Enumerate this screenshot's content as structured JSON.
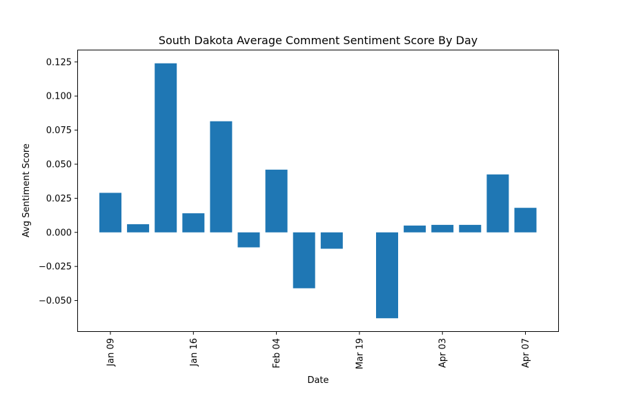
{
  "chart_data": {
    "type": "bar",
    "title": "South Dakota Average Comment Sentiment Score By Day",
    "xlabel": "Date",
    "ylabel": "Avg Sentiment Score",
    "ylim": [
      -0.073,
      0.134
    ],
    "yticks": [
      -0.05,
      -0.025,
      0.0,
      0.025,
      0.05,
      0.075,
      0.1,
      0.125
    ],
    "ytick_labels": [
      "−0.050",
      "−0.025",
      "0.000",
      "0.025",
      "0.050",
      "0.075",
      "0.100",
      "0.125"
    ],
    "xtick_labels": [
      "Jan 09",
      "Jan 16",
      "Feb 04",
      "Mar 19",
      "Apr 03",
      "Apr 07"
    ],
    "xtick_at_bar": [
      0,
      3,
      6,
      9,
      12,
      15
    ],
    "values": [
      0.029,
      0.006,
      0.124,
      0.014,
      0.0815,
      -0.011,
      0.046,
      -0.041,
      -0.012,
      0.0,
      -0.063,
      0.005,
      0.0055,
      0.0055,
      0.0425,
      0.018
    ],
    "bar_color": "#1f77b4",
    "grid": false,
    "legend": "none"
  }
}
